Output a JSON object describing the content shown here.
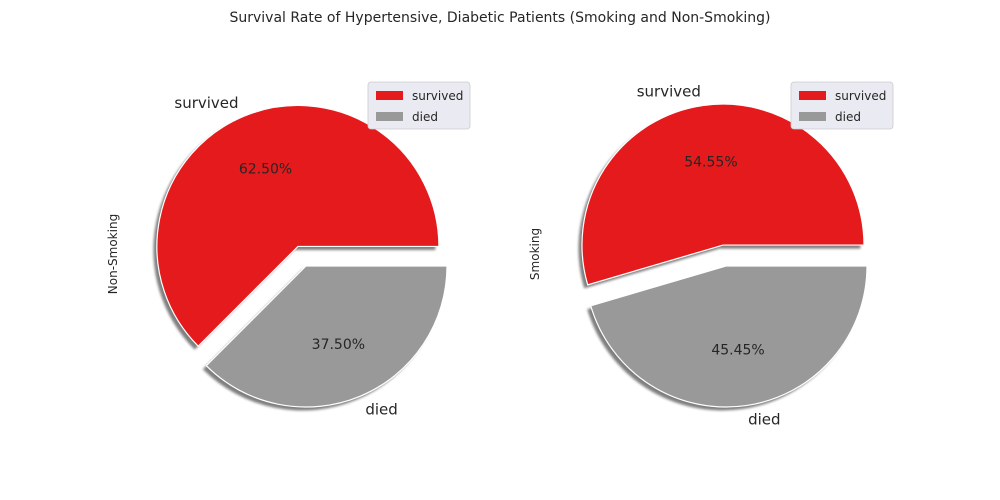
{
  "colors": {
    "survived": "#e41a1c",
    "died": "#999999",
    "legend_bg": "#eaeaf2"
  },
  "chart_data": {
    "type": "pie",
    "title": "Survival Rate of Hypertensive, Diabetic Patients (Smoking and Non-Smoking)",
    "legend_placement": "top-right",
    "shadow": true,
    "explode": [
      0.15,
      0.0
    ],
    "legend": [
      "survived",
      "died"
    ],
    "charts": [
      {
        "ylabel": "Non-Smoking",
        "slices": [
          {
            "label": "survived",
            "value": 62.5,
            "pct_label": "62.50%"
          },
          {
            "label": "died",
            "value": 37.5,
            "pct_label": "37.50%"
          }
        ]
      },
      {
        "ylabel": "Smoking",
        "slices": [
          {
            "label": "survived",
            "value": 54.55,
            "pct_label": "54.55%"
          },
          {
            "label": "died",
            "value": 45.45,
            "pct_label": "45.45%"
          }
        ]
      }
    ]
  }
}
